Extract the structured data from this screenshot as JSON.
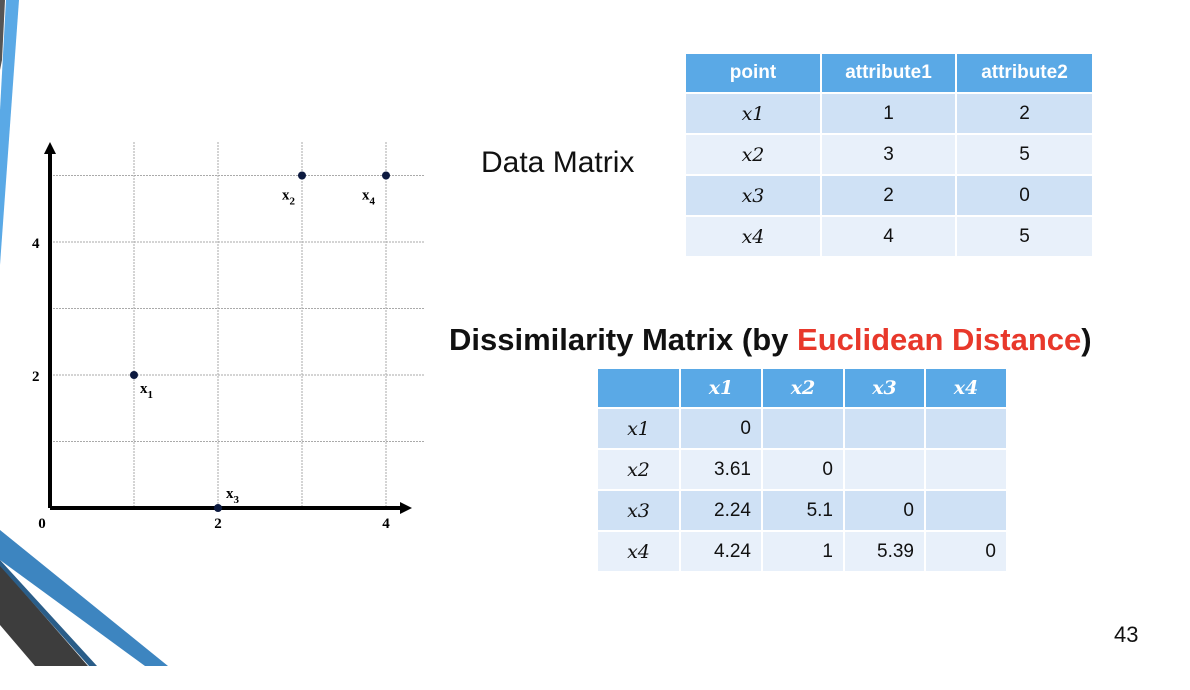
{
  "slide": {
    "page_number": "43",
    "data_matrix_label": "Data Matrix",
    "dissim_title_pre": "Dissimilarity Matrix (by ",
    "dissim_title_highlight": "Euclidean Distance",
    "dissim_title_post": ")",
    "highlight_color": "#e8382b",
    "accent_color": "#5aa9e6"
  },
  "data_matrix": {
    "headers": [
      "point",
      "attribute1",
      "attribute2"
    ],
    "rows": [
      [
        "x1",
        "1",
        "2"
      ],
      [
        "x2",
        "3",
        "5"
      ],
      [
        "x3",
        "2",
        "0"
      ],
      [
        "x4",
        "4",
        "5"
      ]
    ]
  },
  "dissimilarity_matrix": {
    "headers": [
      "",
      "x1",
      "x2",
      "x3",
      "x4"
    ],
    "rows": [
      [
        "x1",
        "0",
        "",
        "",
        ""
      ],
      [
        "x2",
        "3.61",
        "0",
        "",
        ""
      ],
      [
        "x3",
        "2.24",
        "5.1",
        "0",
        ""
      ],
      [
        "x4",
        "4.24",
        "1",
        "5.39",
        "0"
      ]
    ]
  },
  "chart_data": {
    "type": "scatter",
    "xlim": [
      0,
      4.5
    ],
    "ylim": [
      0,
      5.5
    ],
    "grid": true,
    "x_ticks": [
      "0",
      "2",
      "4"
    ],
    "y_ticks": [
      "2",
      "4"
    ],
    "points": [
      {
        "label": "x",
        "sub": "1",
        "x": 1,
        "y": 2
      },
      {
        "label": "x",
        "sub": "2",
        "x": 3,
        "y": 5
      },
      {
        "label": "x",
        "sub": "3",
        "x": 2,
        "y": 0
      },
      {
        "label": "x",
        "sub": "4",
        "x": 4,
        "y": 5
      }
    ]
  }
}
